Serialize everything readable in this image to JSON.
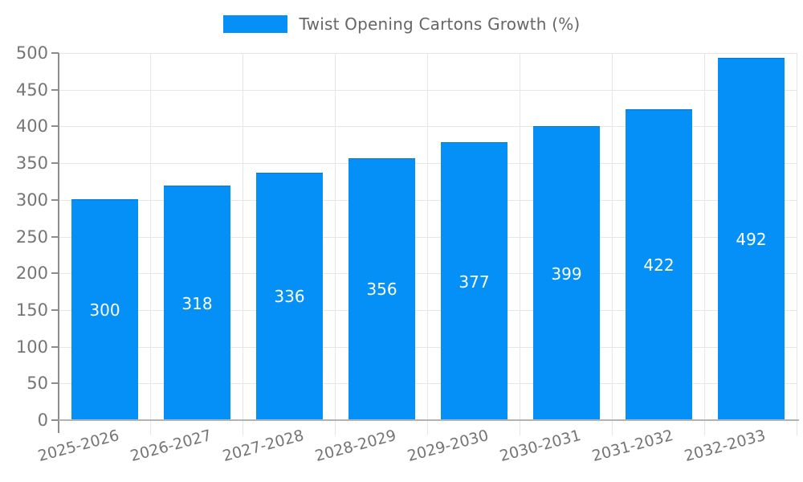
{
  "chart_data": {
    "type": "bar",
    "title": "",
    "legend": {
      "label": "Twist Opening Cartons Growth (%)",
      "position": "top"
    },
    "categories": [
      "2025-2026",
      "2026-2027",
      "2027-2028",
      "2028-2029",
      "2029-2030",
      "2030-2031",
      "2031-2032",
      "2032-2033"
    ],
    "values": [
      300,
      318,
      336,
      356,
      377,
      399,
      422,
      492
    ],
    "value_labels_shown": true,
    "xlabel": "",
    "ylabel": "",
    "ylim": [
      0,
      500
    ],
    "ytick_step": 50,
    "yticks": [
      0,
      50,
      100,
      150,
      200,
      250,
      300,
      350,
      400,
      450,
      500
    ],
    "grid": true,
    "x_label_rotation_deg": -15,
    "colors": {
      "bar": "#0590f8",
      "value_label": "#ffffff",
      "grid_line": "#e6e6e6",
      "y_axis_line": "#8d8d8d",
      "x_axis_line": "#b3b3b3",
      "tick_text": "#757575",
      "legend_text": "#666666"
    }
  }
}
